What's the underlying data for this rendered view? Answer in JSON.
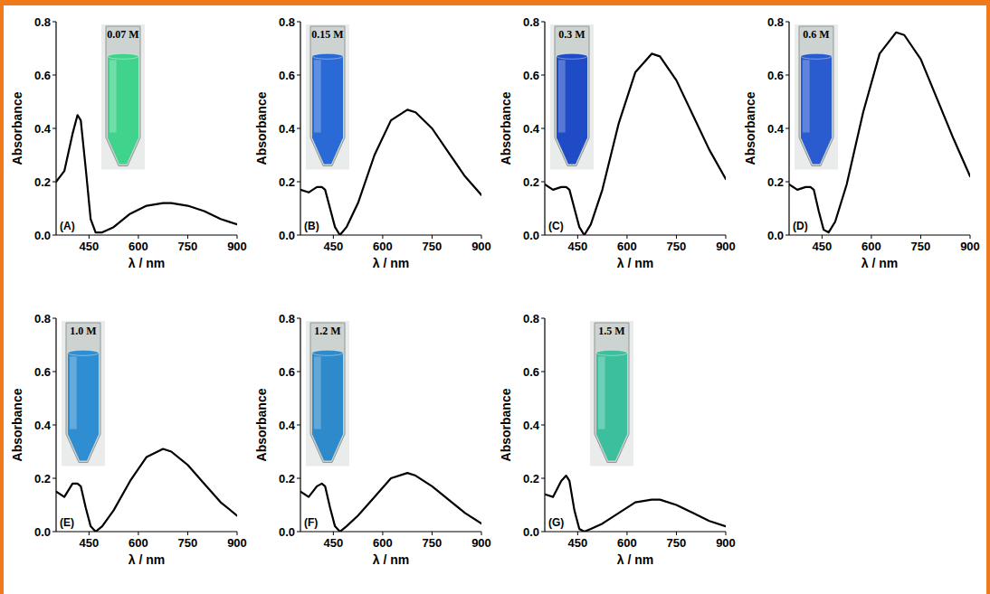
{
  "chart_data": [
    {
      "type": "line",
      "title": "(A)",
      "annotation": "0.07 M",
      "x_label": "λ / nm",
      "y_label": "Absorbance",
      "color": "#3fd38c",
      "x": [
        350,
        375,
        400,
        415,
        425,
        440,
        455,
        470,
        490,
        525,
        575,
        625,
        675,
        700,
        750,
        800,
        850,
        900
      ],
      "series": [
        {
          "color": "#000000",
          "values": [
            0.2,
            0.24,
            0.38,
            0.45,
            0.43,
            0.25,
            0.06,
            0.01,
            0.01,
            0.03,
            0.08,
            0.11,
            0.12,
            0.12,
            0.11,
            0.09,
            0.06,
            0.04
          ]
        }
      ],
      "xlim": [
        350,
        900
      ],
      "xticks": [
        450,
        600,
        750,
        900
      ],
      "ylim": [
        0,
        0.8
      ],
      "yticks": [
        {
          "value": 0,
          "label": "0.0"
        },
        {
          "value": 0.2,
          "label": "0.2"
        },
        {
          "value": 0.4,
          "label": "0.4"
        },
        {
          "value": 0.6,
          "label": "0.6"
        },
        {
          "value": 0.8,
          "label": "0.8"
        }
      ]
    },
    {
      "type": "line",
      "title": "(B)",
      "annotation": "0.15 M",
      "x_label": "λ / nm",
      "y_label": "Absorbance",
      "color": "#2a6ad6",
      "x": [
        350,
        375,
        400,
        415,
        425,
        440,
        455,
        470,
        490,
        525,
        575,
        625,
        675,
        700,
        750,
        800,
        850,
        900
      ],
      "series": [
        {
          "color": "#000000",
          "values": [
            0.17,
            0.16,
            0.18,
            0.18,
            0.17,
            0.1,
            0.03,
            0.0,
            0.03,
            0.12,
            0.3,
            0.43,
            0.47,
            0.46,
            0.4,
            0.31,
            0.22,
            0.15
          ]
        }
      ],
      "xlim": [
        350,
        900
      ],
      "xticks": [
        450,
        600,
        750,
        900
      ],
      "ylim": [
        0,
        0.8
      ],
      "yticks": [
        {
          "value": 0,
          "label": "0.0"
        },
        {
          "value": 0.2,
          "label": "0.2"
        },
        {
          "value": 0.4,
          "label": "0.4"
        },
        {
          "value": 0.6,
          "label": "0.6"
        },
        {
          "value": 0.8,
          "label": "0.8"
        }
      ]
    },
    {
      "type": "line",
      "title": "(C)",
      "annotation": "0.3 M",
      "x_label": "λ / nm",
      "y_label": "Absorbance",
      "color": "#1f4cc6",
      "x": [
        350,
        375,
        400,
        415,
        425,
        440,
        455,
        470,
        490,
        525,
        575,
        625,
        675,
        700,
        750,
        800,
        850,
        900
      ],
      "series": [
        {
          "color": "#000000",
          "values": [
            0.19,
            0.17,
            0.18,
            0.18,
            0.17,
            0.1,
            0.03,
            0.0,
            0.04,
            0.17,
            0.42,
            0.61,
            0.68,
            0.67,
            0.58,
            0.45,
            0.32,
            0.21
          ]
        }
      ],
      "xlim": [
        350,
        900
      ],
      "xticks": [
        450,
        600,
        750,
        900
      ],
      "ylim": [
        0,
        0.8
      ],
      "yticks": [
        {
          "value": 0,
          "label": "0.0"
        },
        {
          "value": 0.2,
          "label": "0.2"
        },
        {
          "value": 0.4,
          "label": "0.4"
        },
        {
          "value": 0.6,
          "label": "0.6"
        },
        {
          "value": 0.8,
          "label": "0.8"
        }
      ]
    },
    {
      "type": "line",
      "title": "(D)",
      "annotation": "0.6 M",
      "x_label": "λ / nm",
      "y_label": "Absorbance",
      "color": "#2a5ccf",
      "x": [
        350,
        375,
        400,
        415,
        425,
        440,
        455,
        470,
        490,
        525,
        575,
        625,
        675,
        700,
        750,
        800,
        850,
        900
      ],
      "series": [
        {
          "color": "#000000",
          "values": [
            0.19,
            0.17,
            0.18,
            0.18,
            0.17,
            0.09,
            0.02,
            0.01,
            0.05,
            0.19,
            0.46,
            0.68,
            0.76,
            0.75,
            0.66,
            0.51,
            0.36,
            0.22
          ]
        }
      ],
      "xlim": [
        350,
        900
      ],
      "xticks": [
        450,
        600,
        750,
        900
      ],
      "ylim": [
        0,
        0.8
      ],
      "yticks": [
        {
          "value": 0,
          "label": "0.0"
        },
        {
          "value": 0.2,
          "label": "0.2"
        },
        {
          "value": 0.4,
          "label": "0.4"
        },
        {
          "value": 0.6,
          "label": "0.6"
        },
        {
          "value": 0.8,
          "label": "0.8"
        }
      ]
    },
    {
      "type": "line",
      "title": "(E)",
      "annotation": "1.0 M",
      "x_label": "λ / nm",
      "y_label": "Absorbance",
      "color": "#2f8ed2",
      "x": [
        350,
        375,
        400,
        415,
        425,
        440,
        455,
        470,
        490,
        525,
        575,
        625,
        675,
        700,
        750,
        800,
        850,
        900
      ],
      "series": [
        {
          "color": "#000000",
          "values": [
            0.15,
            0.13,
            0.18,
            0.18,
            0.17,
            0.09,
            0.02,
            0.0,
            0.02,
            0.08,
            0.19,
            0.28,
            0.31,
            0.3,
            0.25,
            0.18,
            0.11,
            0.06
          ]
        }
      ],
      "xlim": [
        350,
        900
      ],
      "xticks": [
        450,
        600,
        750,
        900
      ],
      "ylim": [
        0,
        0.8
      ],
      "yticks": [
        {
          "value": 0,
          "label": "0.0"
        },
        {
          "value": 0.2,
          "label": "0.2"
        },
        {
          "value": 0.4,
          "label": "0.4"
        },
        {
          "value": 0.6,
          "label": "0.6"
        },
        {
          "value": 0.8,
          "label": "0.8"
        }
      ]
    },
    {
      "type": "line",
      "title": "(F)",
      "annotation": "1.2 M",
      "x_label": "λ / nm",
      "y_label": "Absorbance",
      "color": "#2e8acb",
      "x": [
        350,
        375,
        400,
        415,
        425,
        440,
        455,
        470,
        490,
        525,
        575,
        625,
        675,
        700,
        750,
        800,
        850,
        900
      ],
      "series": [
        {
          "color": "#000000",
          "values": [
            0.15,
            0.13,
            0.17,
            0.18,
            0.17,
            0.09,
            0.02,
            0.0,
            0.02,
            0.06,
            0.13,
            0.2,
            0.22,
            0.21,
            0.17,
            0.12,
            0.07,
            0.03
          ]
        }
      ],
      "xlim": [
        350,
        900
      ],
      "xticks": [
        450,
        600,
        750,
        900
      ],
      "ylim": [
        0,
        0.8
      ],
      "yticks": [
        {
          "value": 0,
          "label": "0.0"
        },
        {
          "value": 0.2,
          "label": "0.2"
        },
        {
          "value": 0.4,
          "label": "0.4"
        },
        {
          "value": 0.6,
          "label": "0.6"
        },
        {
          "value": 0.8,
          "label": "0.8"
        }
      ]
    },
    {
      "type": "line",
      "title": "(G)",
      "annotation": "1.5 M",
      "x_label": "λ / nm",
      "y_label": "Absorbance",
      "color": "#3cbf9c",
      "x": [
        350,
        375,
        400,
        415,
        425,
        440,
        455,
        470,
        490,
        525,
        575,
        625,
        675,
        700,
        750,
        800,
        850,
        900
      ],
      "series": [
        {
          "color": "#000000",
          "values": [
            0.14,
            0.13,
            0.19,
            0.21,
            0.19,
            0.08,
            0.01,
            0.0,
            0.01,
            0.03,
            0.07,
            0.11,
            0.12,
            0.12,
            0.1,
            0.07,
            0.04,
            0.02
          ]
        }
      ],
      "xlim": [
        350,
        900
      ],
      "xticks": [
        450,
        600,
        750,
        900
      ],
      "ylim": [
        0,
        0.8
      ],
      "yticks": [
        {
          "value": 0,
          "label": "0.0"
        },
        {
          "value": 0.2,
          "label": "0.2"
        },
        {
          "value": 0.4,
          "label": "0.4"
        },
        {
          "value": 0.6,
          "label": "0.6"
        },
        {
          "value": 0.8,
          "label": "0.8"
        }
      ]
    }
  ]
}
